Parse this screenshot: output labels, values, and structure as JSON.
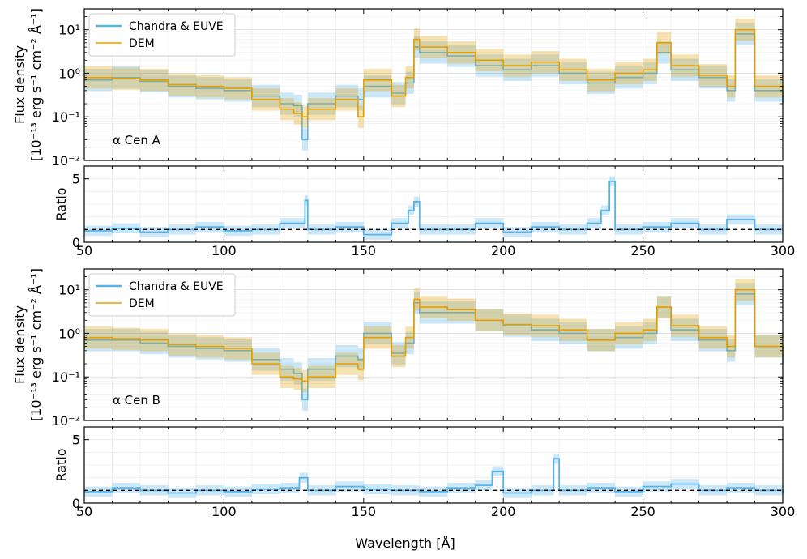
{
  "chart_data": {
    "type": "line",
    "x_axis": {
      "label": "Wavelength [Å]",
      "range": [
        50,
        300
      ],
      "ticks": [
        50,
        100,
        150,
        200,
        250,
        300
      ]
    },
    "panels": [
      {
        "id": "flux-a",
        "kind": "flux",
        "ylabel_line1": "Flux density",
        "ylabel_line2": "[10⁻¹³ erg s⁻¹ cm⁻² Å⁻¹]",
        "yscale": "log",
        "ylim": [
          0.01,
          30
        ],
        "yticks": [
          {
            "value": 0.01,
            "label": "10⁻²"
          },
          {
            "value": 0.1,
            "label": "10⁻¹"
          },
          {
            "value": 1,
            "label": "10⁰"
          },
          {
            "value": 10,
            "label": "10¹"
          }
        ],
        "annotation": "α Cen A",
        "legend": [
          "Chandra & EUVE",
          "DEM"
        ],
        "series": [
          {
            "name": "Chandra & EUVE",
            "color": "#56b4e9",
            "x": [
              50,
              60,
              70,
              80,
              90,
              100,
              110,
              120,
              125,
              128,
              130,
              140,
              148,
              150,
              160,
              165,
              168,
              170,
              180,
              190,
              200,
              210,
              220,
              230,
              240,
              250,
              255,
              260,
              270,
              280,
              283,
              290,
              300
            ],
            "values": [
              0.7,
              0.8,
              0.65,
              0.5,
              0.45,
              0.4,
              0.3,
              0.2,
              0.18,
              0.03,
              0.2,
              0.3,
              0.25,
              0.5,
              0.35,
              0.6,
              4,
              3,
              2.5,
              1.5,
              1.2,
              1.5,
              1.0,
              0.6,
              0.8,
              1.0,
              3,
              1.2,
              0.8,
              0.4,
              8,
              0.4,
              0.2
            ]
          },
          {
            "name": "DEM",
            "color": "#e69f00",
            "x": [
              50,
              60,
              70,
              80,
              90,
              100,
              110,
              120,
              125,
              128,
              130,
              140,
              148,
              150,
              160,
              165,
              168,
              170,
              180,
              190,
              200,
              210,
              220,
              230,
              240,
              250,
              255,
              260,
              270,
              280,
              283,
              290,
              300
            ],
            "values": [
              0.8,
              0.75,
              0.7,
              0.55,
              0.5,
              0.45,
              0.25,
              0.15,
              0.12,
              0.1,
              0.15,
              0.25,
              0.1,
              0.7,
              0.3,
              0.8,
              6,
              4,
              3,
              2,
              1.5,
              1.8,
              1.2,
              0.7,
              1.0,
              1.2,
              5,
              1.5,
              0.9,
              0.5,
              10,
              0.5,
              0.3
            ]
          }
        ]
      },
      {
        "id": "ratio-a",
        "kind": "ratio",
        "ylabel": "Ratio",
        "yscale": "linear",
        "ylim": [
          0,
          6
        ],
        "yticks": [
          {
            "value": 0,
            "label": "0"
          },
          {
            "value": 5,
            "label": "5"
          }
        ],
        "reference_line": 1,
        "series": [
          {
            "name": "Ratio",
            "color": "#56b4e9",
            "x": [
              50,
              60,
              70,
              80,
              90,
              100,
              110,
              120,
              129,
              130,
              140,
              150,
              160,
              166,
              168,
              170,
              180,
              190,
              200,
              210,
              220,
              230,
              235,
              238,
              240,
              250,
              260,
              270,
              280,
              290,
              300
            ],
            "values": [
              0.9,
              1.1,
              0.8,
              1.0,
              1.2,
              0.9,
              1.0,
              1.5,
              3.3,
              1.0,
              1.2,
              0.6,
              1.5,
              2.5,
              3.2,
              1.0,
              1.0,
              1.5,
              0.8,
              1.2,
              1.0,
              1.5,
              2.5,
              4.8,
              1.0,
              1.2,
              1.5,
              1.0,
              1.8,
              1.0,
              1.0
            ]
          }
        ]
      },
      {
        "id": "flux-b",
        "kind": "flux",
        "ylabel_line1": "Flux density",
        "ylabel_line2": "[10⁻¹³ erg s⁻¹ cm⁻² Å⁻¹]",
        "yscale": "log",
        "ylim": [
          0.01,
          30
        ],
        "yticks": [
          {
            "value": 0.01,
            "label": "10⁻²"
          },
          {
            "value": 0.1,
            "label": "10⁻¹"
          },
          {
            "value": 1,
            "label": "10⁰"
          },
          {
            "value": 10,
            "label": "10¹"
          }
        ],
        "annotation": "α Cen B",
        "legend": [
          "Chandra & EUVE",
          "DEM"
        ],
        "series": [
          {
            "name": "Chandra & EUVE",
            "color": "#56b4e9",
            "x": [
              50,
              60,
              70,
              80,
              90,
              100,
              110,
              120,
              125,
              128,
              130,
              140,
              148,
              150,
              160,
              165,
              168,
              170,
              180,
              190,
              200,
              210,
              220,
              230,
              240,
              250,
              255,
              260,
              270,
              280,
              283,
              290,
              300
            ],
            "values": [
              0.7,
              0.7,
              0.6,
              0.5,
              0.45,
              0.4,
              0.25,
              0.15,
              0.12,
              0.03,
              0.15,
              0.3,
              0.25,
              1.0,
              0.35,
              0.6,
              5,
              3,
              3,
              2,
              1.5,
              1.2,
              1.0,
              0.7,
              0.8,
              1.0,
              4,
              1.2,
              0.7,
              0.4,
              8,
              0.5,
              0.2
            ]
          },
          {
            "name": "DEM",
            "color": "#e69f00",
            "x": [
              50,
              60,
              70,
              80,
              90,
              100,
              110,
              120,
              125,
              128,
              130,
              140,
              148,
              150,
              160,
              165,
              168,
              170,
              180,
              190,
              200,
              210,
              220,
              230,
              240,
              250,
              255,
              260,
              270,
              280,
              283,
              290,
              300
            ],
            "values": [
              0.8,
              0.75,
              0.7,
              0.55,
              0.5,
              0.45,
              0.2,
              0.1,
              0.09,
              0.08,
              0.1,
              0.2,
              0.15,
              0.8,
              0.3,
              0.8,
              6,
              4,
              3.5,
              2,
              1.6,
              1.5,
              1.2,
              0.7,
              1.0,
              1.2,
              4,
              1.5,
              0.8,
              0.5,
              10,
              0.5,
              0.3
            ]
          }
        ]
      },
      {
        "id": "ratio-b",
        "kind": "ratio",
        "ylabel": "Ratio",
        "yscale": "linear",
        "ylim": [
          0,
          6
        ],
        "yticks": [
          {
            "value": 0,
            "label": "0"
          },
          {
            "value": 5,
            "label": "5"
          }
        ],
        "reference_line": 1,
        "series": [
          {
            "name": "Ratio",
            "color": "#56b4e9",
            "x": [
              50,
              60,
              70,
              80,
              90,
              100,
              110,
              120,
              127,
              130,
              140,
              150,
              160,
              170,
              180,
              190,
              196,
              200,
              210,
              218,
              220,
              230,
              240,
              250,
              260,
              270,
              280,
              290,
              300
            ],
            "values": [
              0.9,
              1.2,
              1.0,
              0.8,
              1.0,
              0.9,
              1.1,
              1.2,
              2.0,
              1.0,
              1.3,
              1.1,
              1.0,
              0.9,
              1.2,
              1.4,
              2.5,
              0.8,
              1.0,
              3.5,
              1.0,
              1.2,
              0.9,
              1.3,
              1.5,
              1.0,
              1.2,
              1.0,
              0.8
            ]
          }
        ]
      }
    ]
  }
}
